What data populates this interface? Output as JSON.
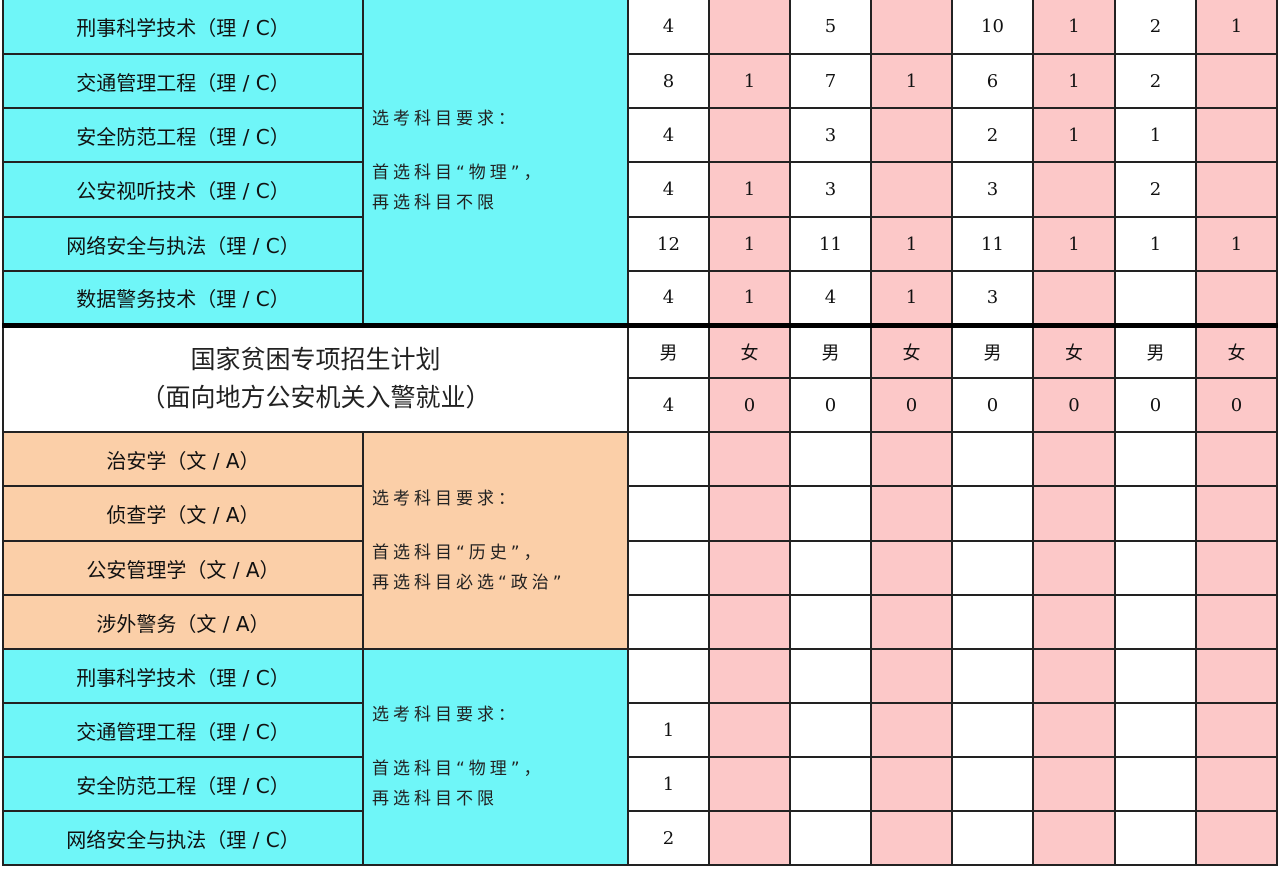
{
  "colors": {
    "science_bg": "#6ff6f8",
    "arts_bg": "#fbcfa8",
    "female_col_bg": "#fcc8c8"
  },
  "section1": {
    "requirement": {
      "line1": "选考科目要求：",
      "line2": "首选科目“物理”，",
      "line3": "再选科目不限"
    },
    "rows": [
      {
        "name": "刑事科学技术（理 / C）",
        "values": [
          "4",
          "",
          "5",
          "",
          "10",
          "1",
          "2",
          "1"
        ]
      },
      {
        "name": "交通管理工程（理 / C）",
        "values": [
          "8",
          "1",
          "7",
          "1",
          "6",
          "1",
          "2",
          ""
        ]
      },
      {
        "name": "安全防范工程（理 / C）",
        "values": [
          "4",
          "",
          "3",
          "",
          "2",
          "1",
          "1",
          ""
        ]
      },
      {
        "name": "公安视听技术（理 / C）",
        "values": [
          "4",
          "1",
          "3",
          "",
          "3",
          "",
          "2",
          ""
        ]
      },
      {
        "name": "网络安全与执法（理 / C）",
        "values": [
          "12",
          "1",
          "11",
          "1",
          "11",
          "1",
          "1",
          "1"
        ]
      },
      {
        "name": "数据警务技术（理 / C）",
        "values": [
          "4",
          "1",
          "4",
          "1",
          "3",
          "",
          "",
          ""
        ]
      }
    ]
  },
  "poverty_plan": {
    "title_line1": "国家贫困专项招生计划",
    "title_line2": "（面向地方公安机关入警就业）",
    "gender_headers": [
      "男",
      "女",
      "男",
      "女",
      "男",
      "女",
      "男",
      "女"
    ],
    "values": [
      "4",
      "0",
      "0",
      "0",
      "0",
      "0",
      "0",
      "0"
    ]
  },
  "section2": {
    "requirement": {
      "line1": "选考科目要求：",
      "line2": "首选科目“历史”，",
      "line3": "再选科目必选“政治”"
    },
    "rows": [
      {
        "name": "治安学（文 / A）",
        "values": [
          "",
          "",
          "",
          "",
          "",
          "",
          "",
          ""
        ]
      },
      {
        "name": "侦查学（文 / A）",
        "values": [
          "",
          "",
          "",
          "",
          "",
          "",
          "",
          ""
        ]
      },
      {
        "name": "公安管理学（文 / A）",
        "values": [
          "",
          "",
          "",
          "",
          "",
          "",
          "",
          ""
        ]
      },
      {
        "name": "涉外警务（文 / A）",
        "values": [
          "",
          "",
          "",
          "",
          "",
          "",
          "",
          ""
        ]
      }
    ]
  },
  "section3": {
    "requirement": {
      "line1": "选考科目要求：",
      "line2": "首选科目“物理”，",
      "line3": "再选科目不限"
    },
    "rows": [
      {
        "name": "刑事科学技术（理 / C）",
        "values": [
          "",
          "",
          "",
          "",
          "",
          "",
          "",
          ""
        ]
      },
      {
        "name": "交通管理工程（理 / C）",
        "values": [
          "1",
          "",
          "",
          "",
          "",
          "",
          "",
          ""
        ]
      },
      {
        "name": "安全防范工程（理 / C）",
        "values": [
          "1",
          "",
          "",
          "",
          "",
          "",
          "",
          ""
        ]
      },
      {
        "name": "网络安全与执法（理 / C）",
        "values": [
          "2",
          "",
          "",
          "",
          "",
          "",
          "",
          ""
        ]
      }
    ]
  }
}
